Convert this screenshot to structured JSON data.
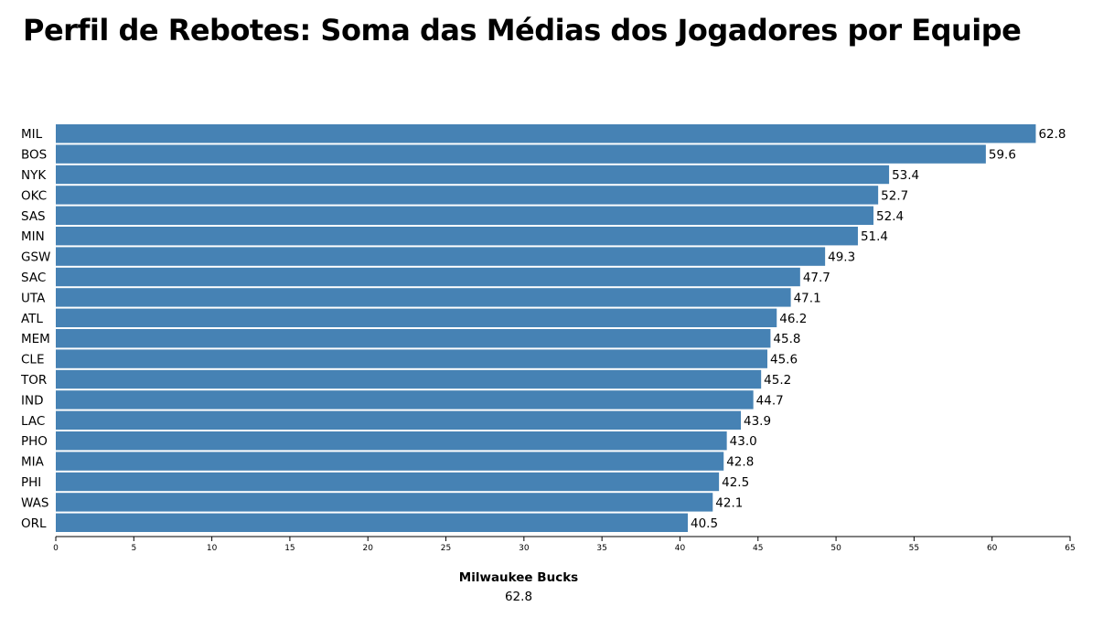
{
  "title": "Perfil de Rebotes: Soma das Médias dos Jogadores por Equipe",
  "colors": {
    "bar": "#4682b4",
    "axis": "#000000"
  },
  "highlight": {
    "team": "Milwaukee Bucks",
    "value": "62.8"
  },
  "chart_data": {
    "type": "bar",
    "orientation": "horizontal",
    "title": "Perfil de Rebotes: Soma das Médias dos Jogadores por Equipe",
    "xlabel": "",
    "ylabel": "",
    "xlim": [
      0,
      65
    ],
    "x_ticks": [
      0,
      5,
      10,
      15,
      20,
      25,
      30,
      35,
      40,
      45,
      50,
      55,
      60,
      65
    ],
    "grid": false,
    "categories": [
      "MIL",
      "BOS",
      "NYK",
      "OKC",
      "SAS",
      "MIN",
      "GSW",
      "SAC",
      "UTA",
      "ATL",
      "MEM",
      "CLE",
      "TOR",
      "IND",
      "LAC",
      "PHO",
      "MIA",
      "PHI",
      "WAS",
      "ORL"
    ],
    "values": [
      62.8,
      59.6,
      53.4,
      52.7,
      52.4,
      51.4,
      49.3,
      47.7,
      47.1,
      46.2,
      45.8,
      45.6,
      45.2,
      44.7,
      43.9,
      43.0,
      42.8,
      42.5,
      42.1,
      40.5
    ],
    "value_labels": [
      "62.8",
      "59.6",
      "53.4",
      "52.7",
      "52.4",
      "51.4",
      "49.3",
      "47.7",
      "47.1",
      "46.2",
      "45.8",
      "45.6",
      "45.2",
      "44.7",
      "43.9",
      "43.0",
      "42.8",
      "42.5",
      "42.1",
      "40.5"
    ]
  }
}
